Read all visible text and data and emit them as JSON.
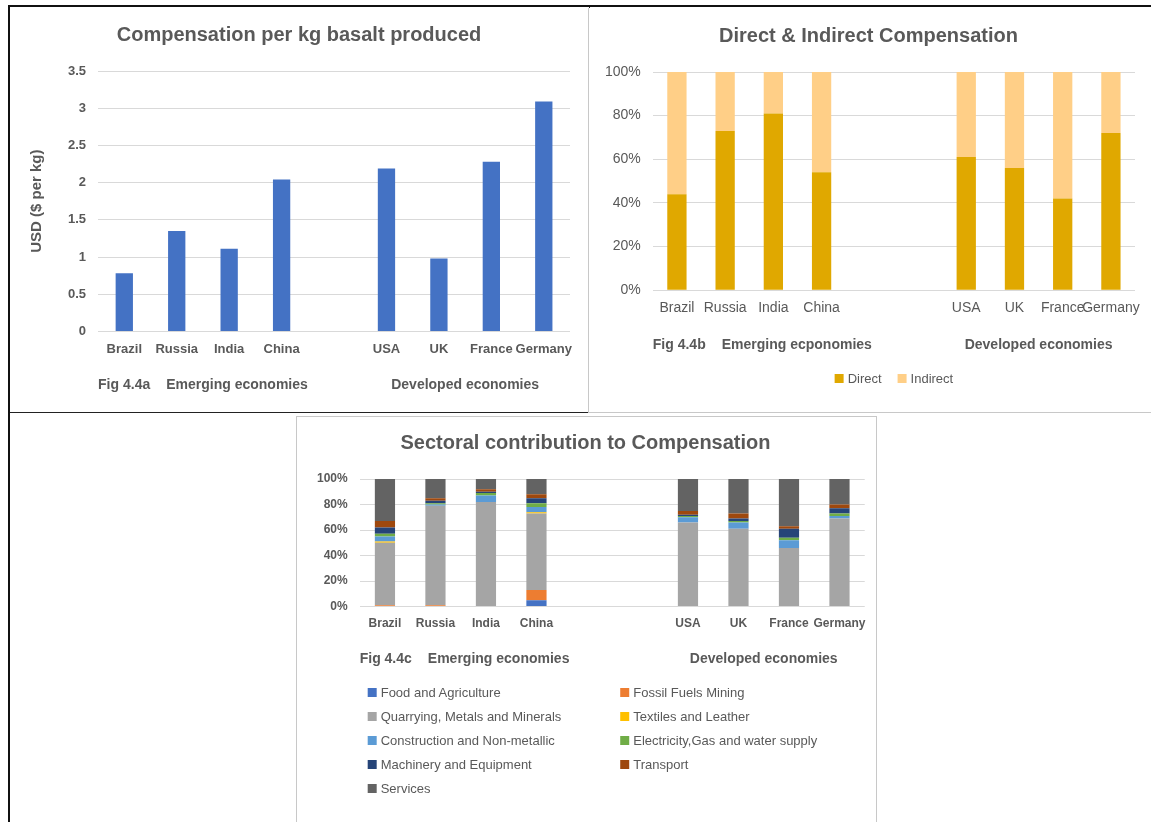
{
  "chart_data": [
    {
      "type": "bar",
      "title": "Compensation per kg basalt produced",
      "ylabel": "USD ($ per kg)",
      "categories": [
        "Brazil",
        "Russia",
        "India",
        "China",
        null,
        "USA",
        "UK",
        "France",
        "Germany"
      ],
      "series": [
        {
          "color": "#4472c4",
          "values": [
            0.78,
            1.35,
            1.11,
            2.04,
            null,
            2.19,
            0.98,
            2.28,
            3.09
          ]
        }
      ],
      "ylim": [
        0,
        3.5
      ],
      "yticks": [
        0,
        0.5,
        1,
        1.5,
        2,
        2.5,
        3,
        3.5
      ],
      "grid": "y",
      "annotations": [
        "Fig 4.4a",
        "Emerging economies",
        "Developed economies"
      ]
    },
    {
      "type": "bar",
      "title": "Direct & Indirect Compensation",
      "categories": [
        "Brazil",
        "Russia",
        "India",
        "China",
        null,
        null,
        "USA",
        "UK",
        "France",
        "Germany"
      ],
      "stacked": true,
      "series": [
        {
          "name": "Direct",
          "color": "#e0a800",
          "values": [
            44,
            73,
            81,
            54,
            null,
            null,
            61,
            56,
            42,
            72
          ]
        },
        {
          "name": "Indirect",
          "color": "#ffcf87",
          "values": [
            56,
            27,
            19,
            46,
            null,
            null,
            39,
            44,
            58,
            28
          ]
        }
      ],
      "ylim": [
        0,
        100
      ],
      "yticks": [
        {
          "value": 0,
          "label": "0%"
        },
        {
          "value": 20,
          "label": "20%"
        },
        {
          "value": 40,
          "label": "40%"
        },
        {
          "value": 60,
          "label": "60%"
        },
        {
          "value": 80,
          "label": "80%"
        },
        {
          "value": 100,
          "label": "100%"
        }
      ],
      "grid": "y",
      "legend": "bottom",
      "annotations": [
        "Fig 4.4b",
        "Emerging ecponomies",
        "Developed economies"
      ]
    },
    {
      "type": "bar",
      "title": "Sectoral contribution to Compensation",
      "categories": [
        "Brazil",
        "Russia",
        "India",
        "China",
        null,
        null,
        "USA",
        "UK",
        "France",
        "Germany"
      ],
      "stacked": true,
      "series": [
        {
          "name": "Food and Agriculture",
          "color": "#4472c4",
          "values": [
            0,
            0,
            0,
            5,
            null,
            null,
            0,
            0,
            0,
            0
          ]
        },
        {
          "name": "Fossil Fuels Mining",
          "color": "#ed7d31",
          "values": [
            1,
            1,
            0,
            8,
            null,
            null,
            0,
            0,
            0,
            0
          ]
        },
        {
          "name": "Quarrying, Metals and Minerals",
          "color": "#a5a5a5",
          "values": [
            49,
            78,
            82,
            60,
            null,
            null,
            66,
            61,
            46,
            69
          ]
        },
        {
          "name": "Textiles and Leather",
          "color": "#ffc000",
          "values": [
            1,
            0,
            0,
            1,
            null,
            null,
            0,
            0,
            0,
            0
          ]
        },
        {
          "name": "Construction and Non-metallic",
          "color": "#5b9bd5",
          "values": [
            4,
            1,
            5,
            4,
            null,
            null,
            4,
            5,
            6,
            2
          ]
        },
        {
          "name": "Electricity,Gas and water supply",
          "color": "#70ad47",
          "values": [
            2,
            1,
            2,
            3,
            null,
            null,
            1,
            1,
            2,
            2
          ]
        },
        {
          "name": "Machinery and Equipment",
          "color": "#264478",
          "values": [
            5,
            2,
            1,
            4,
            null,
            null,
            1,
            2,
            7,
            4
          ]
        },
        {
          "name": "Transport",
          "color": "#9e480e",
          "values": [
            5,
            2,
            2,
            3,
            null,
            null,
            3,
            4,
            2,
            3
          ]
        },
        {
          "name": "Services",
          "color": "#636363",
          "values": [
            33,
            15,
            8,
            12,
            null,
            null,
            25,
            27,
            37,
            20
          ]
        }
      ],
      "ylim": [
        0,
        100
      ],
      "yticks": [
        {
          "value": 0,
          "label": "0%"
        },
        {
          "value": 20,
          "label": "20%"
        },
        {
          "value": 40,
          "label": "40%"
        },
        {
          "value": 60,
          "label": "60%"
        },
        {
          "value": 80,
          "label": "80%"
        },
        {
          "value": 100,
          "label": "100%"
        }
      ],
      "grid": "y",
      "legend": "bottom",
      "annotations": [
        "Fig 4.4c",
        "Emerging economies",
        "Developed economies"
      ]
    }
  ]
}
